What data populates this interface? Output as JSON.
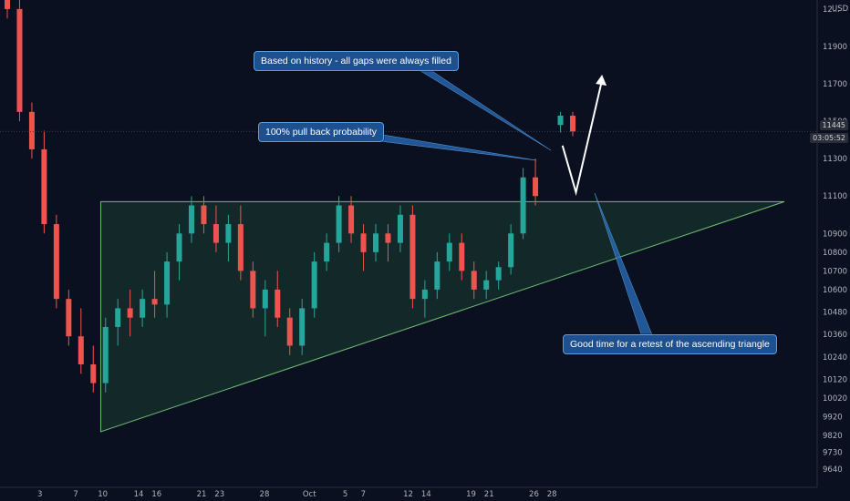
{
  "chart_data": {
    "type": "candlestick",
    "currency": "USD",
    "y_ticks": [
      9640,
      9730,
      9820,
      9920,
      10020,
      10120,
      10240,
      10360,
      10480,
      10600,
      10700,
      10800,
      10900,
      11100,
      11300,
      11500,
      11700,
      11900
    ],
    "x_ticks": [
      {
        "label": "3",
        "idx": 2
      },
      {
        "label": "7",
        "idx": 6
      },
      {
        "label": "10",
        "idx": 9
      },
      {
        "label": "14",
        "idx": 13
      },
      {
        "label": "16",
        "idx": 15
      },
      {
        "label": "21",
        "idx": 20
      },
      {
        "label": "23",
        "idx": 22
      },
      {
        "label": "28",
        "idx": 27
      },
      {
        "label": "Oct",
        "idx": 32
      },
      {
        "label": "5",
        "idx": 36
      },
      {
        "label": "7",
        "idx": 38
      },
      {
        "label": "12",
        "idx": 43
      },
      {
        "label": "14",
        "idx": 45
      },
      {
        "label": "19",
        "idx": 50
      },
      {
        "label": "21",
        "idx": 52
      },
      {
        "label": "26",
        "idx": 57
      },
      {
        "label": "28",
        "idx": 59
      }
    ],
    "current_price": "11445",
    "countdown": "03:05:52",
    "top_price_partial": "12...",
    "candles": [
      [
        12250,
        12300,
        12050,
        12100
      ],
      [
        12100,
        12150,
        11500,
        11550
      ],
      [
        11550,
        11600,
        11300,
        11350
      ],
      [
        11350,
        11450,
        10900,
        10950
      ],
      [
        10950,
        11000,
        10500,
        10550
      ],
      [
        10550,
        10600,
        10300,
        10350
      ],
      [
        10350,
        10500,
        10150,
        10200
      ],
      [
        10200,
        10300,
        10050,
        10100
      ],
      [
        10100,
        10450,
        10050,
        10400
      ],
      [
        10400,
        10550,
        10300,
        10500
      ],
      [
        10500,
        10600,
        10350,
        10450
      ],
      [
        10450,
        10600,
        10400,
        10550
      ],
      [
        10550,
        10700,
        10450,
        10520
      ],
      [
        10520,
        10800,
        10450,
        10750
      ],
      [
        10750,
        10950,
        10650,
        10900
      ],
      [
        10900,
        11100,
        10850,
        11050
      ],
      [
        11050,
        11100,
        10900,
        10950
      ],
      [
        10950,
        11050,
        10800,
        10850
      ],
      [
        10850,
        11000,
        10750,
        10950
      ],
      [
        10950,
        11050,
        10650,
        10700
      ],
      [
        10700,
        10750,
        10450,
        10500
      ],
      [
        10500,
        10650,
        10350,
        10600
      ],
      [
        10600,
        10700,
        10400,
        10450
      ],
      [
        10450,
        10500,
        10250,
        10300
      ],
      [
        10300,
        10550,
        10250,
        10500
      ],
      [
        10500,
        10800,
        10450,
        10750
      ],
      [
        10750,
        10900,
        10700,
        10850
      ],
      [
        10850,
        11100,
        10800,
        11050
      ],
      [
        11050,
        11100,
        10850,
        10900
      ],
      [
        10900,
        10950,
        10700,
        10800
      ],
      [
        10800,
        10950,
        10750,
        10900
      ],
      [
        10900,
        10950,
        10750,
        10850
      ],
      [
        10850,
        11050,
        10800,
        11000
      ],
      [
        11000,
        11050,
        10500,
        10550
      ],
      [
        10550,
        10650,
        10450,
        10600
      ],
      [
        10600,
        10800,
        10550,
        10750
      ],
      [
        10750,
        10900,
        10700,
        10850
      ],
      [
        10850,
        10900,
        10650,
        10700
      ],
      [
        10700,
        10750,
        10550,
        10600
      ],
      [
        10600,
        10700,
        10550,
        10650
      ],
      [
        10650,
        10750,
        10600,
        10720
      ],
      [
        10720,
        10950,
        10680,
        10900
      ],
      [
        10900,
        11250,
        10870,
        11200
      ],
      [
        11200,
        11300,
        11050,
        11100
      ],
      [
        11480,
        11550,
        11440,
        11530
      ],
      [
        11530,
        11550,
        11420,
        11445
      ]
    ],
    "ascending_triangle": {
      "resistance": {
        "from_idx": 10.2,
        "to_idx": 86.3,
        "price": 11070
      },
      "support": {
        "from_idx": 10.2,
        "from_price": 9840,
        "to_idx": 86.3,
        "to_price": 11070
      }
    },
    "projection": {
      "points": [
        [
          61.6,
          11370
        ],
        [
          63.1,
          11120
        ],
        [
          66.0,
          11720
        ]
      ]
    },
    "annotations": [
      {
        "id": "gaps",
        "text": "Based on history - all gaps were always filled"
      },
      {
        "id": "pullback",
        "text": "100% pull back probability"
      },
      {
        "id": "retest",
        "text": "Good time for a retest of the ascending triangle"
      }
    ],
    "colors": {
      "up": "#26a69a",
      "down": "#ef5350",
      "triangle_fill": "#1d4a35",
      "triangle_line": "#6fbf73",
      "callout": "#1e4f8f",
      "arrow": "#ffffff"
    }
  }
}
